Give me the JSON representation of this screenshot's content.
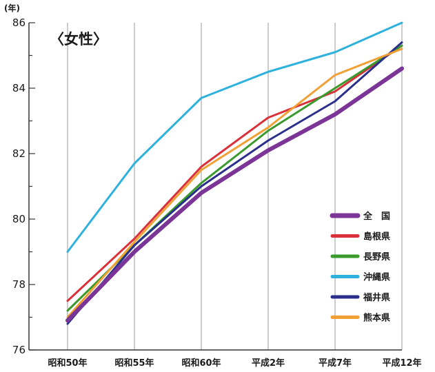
{
  "chart_data": {
    "type": "line",
    "title": "〈女性〉",
    "y_unit": "(年)",
    "xlabel": "",
    "ylabel": "",
    "categories": [
      "昭和50年",
      "昭和55年",
      "昭和60年",
      "平成2年",
      "平成7年",
      "平成12年"
    ],
    "ylim": [
      76,
      86
    ],
    "y_ticks": [
      76,
      78,
      80,
      82,
      84,
      86
    ],
    "grid": "vertical",
    "legend_position": "lower-right",
    "series": [
      {
        "name": "全　国",
        "color": "#7b3596",
        "width": 6,
        "values": [
          76.9,
          79.0,
          80.8,
          82.1,
          83.2,
          84.6
        ]
      },
      {
        "name": "島根県",
        "color": "#d8313a",
        "width": 3,
        "values": [
          77.5,
          79.4,
          81.6,
          83.1,
          83.9,
          85.3
        ]
      },
      {
        "name": "長野県",
        "color": "#3a9a2c",
        "width": 3,
        "values": [
          77.2,
          79.2,
          81.1,
          82.7,
          84.0,
          85.3
        ]
      },
      {
        "name": "沖縄県",
        "color": "#2eb1dc",
        "width": 3,
        "values": [
          79.0,
          81.7,
          83.7,
          84.5,
          85.1,
          86.0
        ]
      },
      {
        "name": "福井県",
        "color": "#2b2f8c",
        "width": 3,
        "values": [
          76.8,
          79.2,
          81.0,
          82.4,
          83.6,
          85.4
        ]
      },
      {
        "name": "熊本県",
        "color": "#f0a035",
        "width": 3,
        "values": [
          77.0,
          79.3,
          81.5,
          82.8,
          84.4,
          85.2
        ]
      }
    ]
  }
}
